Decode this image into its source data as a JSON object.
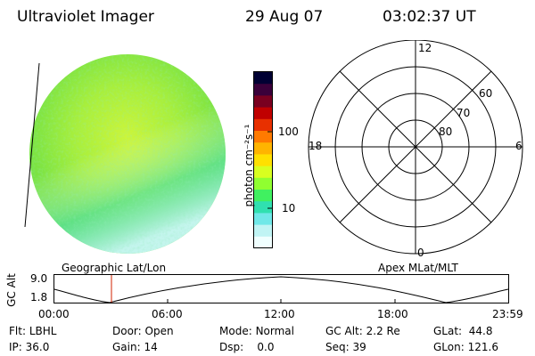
{
  "header": {
    "instrument": "Ultraviolet Imager",
    "date": "29 Aug 07",
    "time": "03:02:37 UT"
  },
  "colorbar": {
    "label": "photon cm⁻²s⁻¹",
    "ticks": [
      "100",
      "10"
    ],
    "scale": "log",
    "colors": [
      "#000033",
      "#3a003a",
      "#7a0020",
      "#c00000",
      "#e83000",
      "#ff7a00",
      "#ffb400",
      "#ffe000",
      "#d8ff20",
      "#90ff30",
      "#40f060",
      "#30e0b0",
      "#70e8e8",
      "#c0f4f4",
      "#f0ffff"
    ]
  },
  "polar": {
    "rings": [
      "80",
      "70",
      "60"
    ],
    "mlt": {
      "top": "12",
      "left": "18",
      "right": "6",
      "bottom": "0"
    }
  },
  "track": {
    "y_axis_label": "GC Alt",
    "y_ticks": [
      "9.0",
      "1.8"
    ],
    "left_title": "Geographic Lat/Lon",
    "right_title": "Apex MLat/MLT",
    "x_ticks": [
      "00:00",
      "06:00",
      "12:00",
      "18:00",
      "23:59"
    ],
    "marker_time": "03:02"
  },
  "info": {
    "flt": {
      "label": "Flt:",
      "value": "LBHL"
    },
    "ip": {
      "label": "IP:",
      "value": "36.0"
    },
    "door": {
      "label": "Door:",
      "value": "Open"
    },
    "gain": {
      "label": "Gain:",
      "value": "14"
    },
    "mode": {
      "label": "Mode:",
      "value": "Normal"
    },
    "dsp": {
      "label": "Dsp:",
      "value": "0.0"
    },
    "gcalt": {
      "label": "GC Alt:",
      "value": "2.2 Re"
    },
    "seq": {
      "label": "Seq:",
      "value": "39"
    },
    "glat": {
      "label": "GLat:",
      "value": "44.8"
    },
    "glon": {
      "label": "GLon:",
      "value": "121.6"
    }
  }
}
